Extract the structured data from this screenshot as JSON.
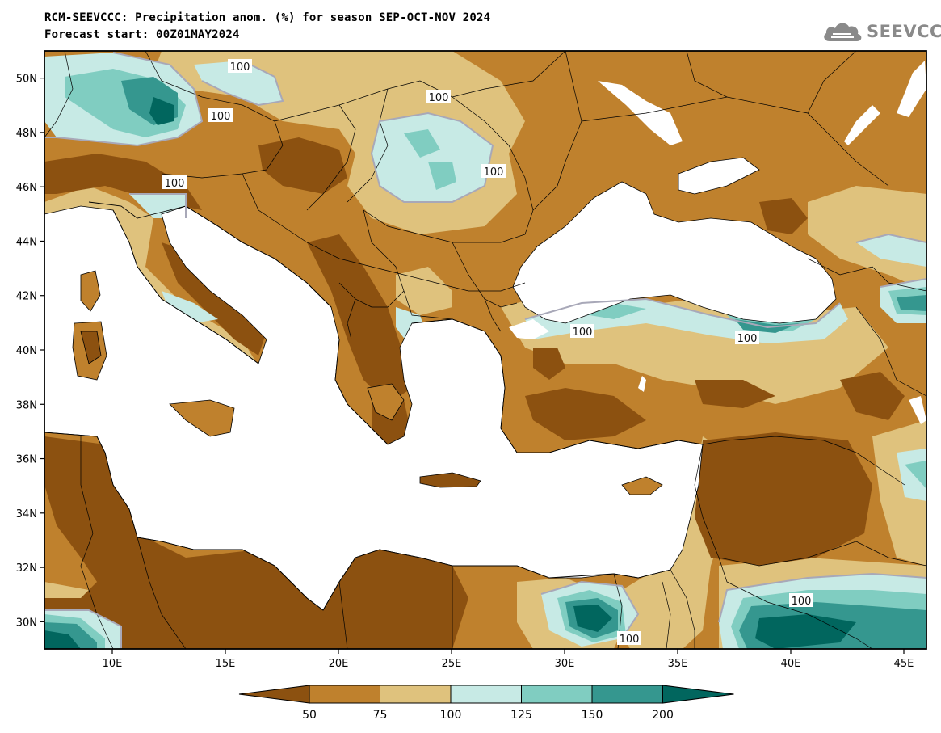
{
  "header": {
    "title": "RCM-SEEVCCC: Precipitation anom. (%) for season SEP-OCT-NOV 2024",
    "subtitle": "Forecast start: 00Z01MAY2024"
  },
  "logo": {
    "text": "SEEVCCC",
    "icon": "cloud-icon"
  },
  "map": {
    "region": "South-East Europe, Mediterranean and Middle East",
    "lon_range": [
      7,
      46
    ],
    "lat_range": [
      29,
      51
    ],
    "lat_ticks": [
      "50N",
      "48N",
      "46N",
      "44N",
      "42N",
      "40N",
      "38N",
      "36N",
      "34N",
      "32N",
      "30N"
    ],
    "lon_ticks": [
      "10E",
      "15E",
      "20E",
      "25E",
      "30E",
      "35E",
      "40E",
      "45E"
    ],
    "contour_labels": [
      "100",
      "100",
      "100",
      "100",
      "100",
      "100",
      "100",
      "100",
      "100",
      "100"
    ]
  },
  "colorbar": {
    "labels": [
      "50",
      "75",
      "100",
      "125",
      "150",
      "200"
    ],
    "colors": {
      "below_50": "#8c5110",
      "c50_75": "#bf812d",
      "c75_100": "#dfc27d",
      "c100_125": "#c7eae5",
      "c125_150": "#80cdc1",
      "c150_200": "#35978f",
      "above_200": "#01665e"
    }
  },
  "colors": {
    "sea": "#ffffff",
    "frame": "#000000",
    "logo_gray": "#8a8a8a"
  }
}
